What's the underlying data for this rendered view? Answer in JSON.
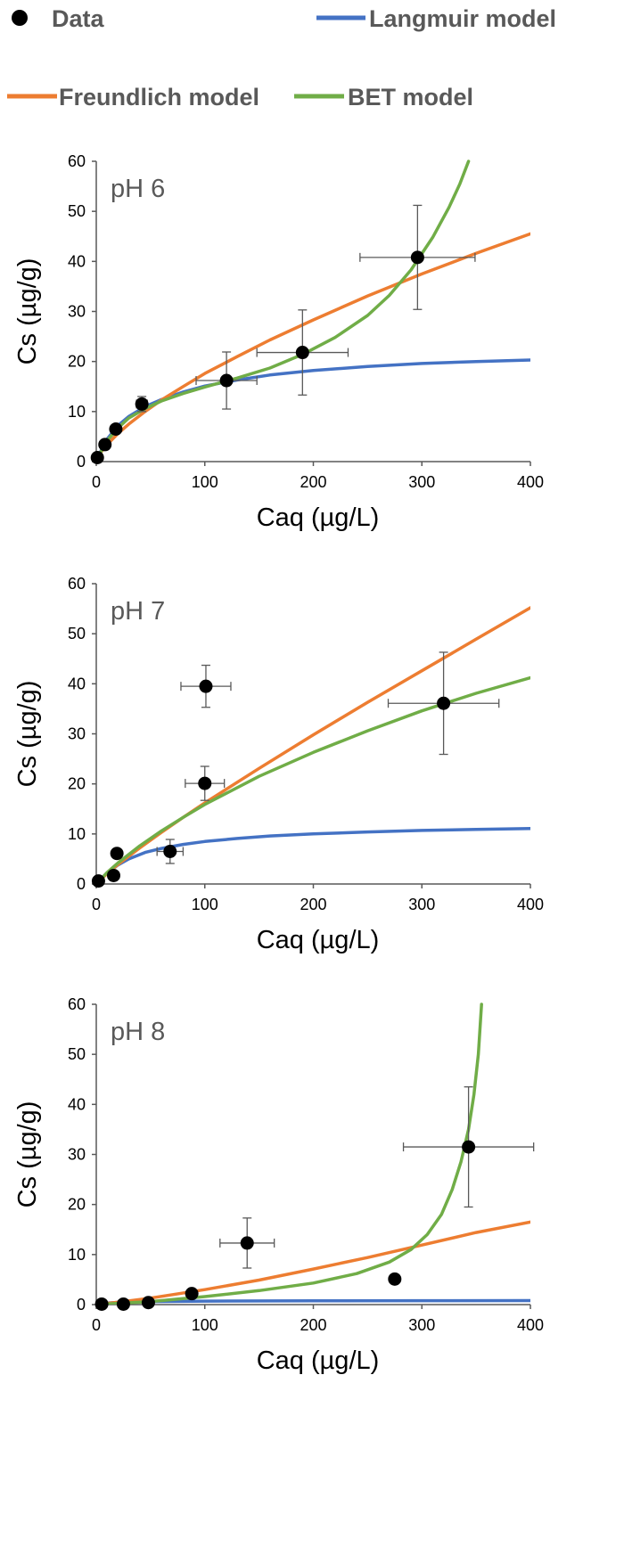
{
  "legend": [
    {
      "label": "Data",
      "kind": "marker",
      "color": "#000000"
    },
    {
      "label": "Langmuir model",
      "kind": "line",
      "color": "#4472C4"
    },
    {
      "label": "Freundlich model",
      "kind": "line",
      "color": "#ED7D31"
    },
    {
      "label": "BET model",
      "kind": "line",
      "color": "#70AD47"
    }
  ],
  "chart_data": [
    {
      "type": "scatter",
      "title": "pH 6",
      "xlabel": "Caq (µg/L)",
      "ylabel": "Cs (µg/g)",
      "xlim": [
        0,
        400
      ],
      "ylim": [
        0,
        60
      ],
      "xticks": [
        0,
        100,
        200,
        300,
        400
      ],
      "yticks": [
        0,
        10,
        20,
        30,
        40,
        50,
        60
      ],
      "data": [
        {
          "x": 1,
          "y": 0.8,
          "xerr": 0,
          "yerr": 0
        },
        {
          "x": 8,
          "y": 3.4,
          "xerr": 0,
          "yerr": 0
        },
        {
          "x": 18,
          "y": 6.5,
          "xerr": 0,
          "yerr": 0
        },
        {
          "x": 42,
          "y": 11.5,
          "xerr": 5,
          "yerr": 1.5
        },
        {
          "x": 120,
          "y": 16.2,
          "xerr": 28,
          "yerr": 5.7
        },
        {
          "x": 190,
          "y": 21.8,
          "xerr": 42,
          "yerr": 8.5
        },
        {
          "x": 296,
          "y": 40.8,
          "xerr": 53,
          "yerr": 10.4
        }
      ],
      "series": [
        {
          "name": "Langmuir model",
          "color": "#4472C4",
          "points": [
            [
              0,
              0
            ],
            [
              5,
              2.5
            ],
            [
              10,
              4.5
            ],
            [
              20,
              7.2
            ],
            [
              30,
              9
            ],
            [
              45,
              11
            ],
            [
              60,
              12.4
            ],
            [
              80,
              13.9
            ],
            [
              100,
              15.1
            ],
            [
              130,
              16.3
            ],
            [
              160,
              17.3
            ],
            [
              200,
              18.2
            ],
            [
              250,
              19
            ],
            [
              300,
              19.6
            ],
            [
              350,
              20
            ],
            [
              400,
              20.3
            ]
          ]
        },
        {
          "name": "Freundlich model",
          "color": "#ED7D31",
          "points": [
            [
              0,
              0
            ],
            [
              5,
              2.1
            ],
            [
              10,
              3.4
            ],
            [
              20,
              5.6
            ],
            [
              30,
              7.5
            ],
            [
              45,
              10
            ],
            [
              60,
              12.3
            ],
            [
              80,
              15
            ],
            [
              100,
              17.6
            ],
            [
              130,
              21
            ],
            [
              160,
              24.3
            ],
            [
              200,
              28.3
            ],
            [
              250,
              33.1
            ],
            [
              300,
              37.5
            ],
            [
              350,
              41.6
            ],
            [
              400,
              45.5
            ]
          ]
        },
        {
          "name": "BET model",
          "color": "#70AD47",
          "points": [
            [
              0,
              0
            ],
            [
              5,
              2.3
            ],
            [
              10,
              4.2
            ],
            [
              20,
              6.7
            ],
            [
              30,
              8.7
            ],
            [
              45,
              10.6
            ],
            [
              60,
              12.1
            ],
            [
              80,
              13.6
            ],
            [
              100,
              14.9
            ],
            [
              130,
              16.7
            ],
            [
              160,
              18.7
            ],
            [
              190,
              21.4
            ],
            [
              220,
              24.8
            ],
            [
              250,
              29.2
            ],
            [
              270,
              33.2
            ],
            [
              290,
              38.3
            ],
            [
              310,
              44.8
            ],
            [
              325,
              50.8
            ],
            [
              335,
              55.5
            ],
            [
              343,
              60
            ]
          ]
        }
      ]
    },
    {
      "type": "scatter",
      "title": "pH 7",
      "xlabel": "Caq (µg/L)",
      "ylabel": "Cs (µg/g)",
      "xlim": [
        0,
        400
      ],
      "ylim": [
        0,
        60
      ],
      "xticks": [
        0,
        100,
        200,
        300,
        400
      ],
      "yticks": [
        0,
        10,
        20,
        30,
        40,
        50,
        60
      ],
      "data": [
        {
          "x": 2,
          "y": 0.6,
          "xerr": 0,
          "yerr": 0
        },
        {
          "x": 16,
          "y": 1.7,
          "xerr": 0,
          "yerr": 0
        },
        {
          "x": 19,
          "y": 6.1,
          "xerr": 0,
          "yerr": 0
        },
        {
          "x": 68,
          "y": 6.5,
          "xerr": 12,
          "yerr": 2.4
        },
        {
          "x": 100,
          "y": 20.1,
          "xerr": 18,
          "yerr": 3.4
        },
        {
          "x": 101,
          "y": 39.5,
          "xerr": 23,
          "yerr": 4.2
        },
        {
          "x": 320,
          "y": 36.1,
          "xerr": 51,
          "yerr": 10.2
        }
      ],
      "series": [
        {
          "name": "Langmuir model",
          "color": "#4472C4",
          "points": [
            [
              0,
              0
            ],
            [
              5,
              1.2
            ],
            [
              10,
              2.2
            ],
            [
              20,
              3.8
            ],
            [
              30,
              5
            ],
            [
              45,
              6.3
            ],
            [
              60,
              7.1
            ],
            [
              80,
              7.9
            ],
            [
              100,
              8.5
            ],
            [
              130,
              9.1
            ],
            [
              160,
              9.6
            ],
            [
              200,
              10
            ],
            [
              250,
              10.4
            ],
            [
              300,
              10.7
            ],
            [
              350,
              10.9
            ],
            [
              400,
              11.1
            ]
          ]
        },
        {
          "name": "Freundlich model",
          "color": "#ED7D31",
          "points": [
            [
              0,
              0
            ],
            [
              10,
              2.1
            ],
            [
              20,
              3.9
            ],
            [
              40,
              7.2
            ],
            [
              60,
              10.3
            ],
            [
              80,
              13.3
            ],
            [
              100,
              16.2
            ],
            [
              150,
              23.1
            ],
            [
              200,
              29.8
            ],
            [
              250,
              36.3
            ],
            [
              300,
              42.6
            ],
            [
              350,
              48.9
            ],
            [
              400,
              55.2
            ]
          ]
        },
        {
          "name": "BET model",
          "color": "#70AD47",
          "points": [
            [
              0,
              0
            ],
            [
              10,
              2.3
            ],
            [
              20,
              4.2
            ],
            [
              40,
              7.6
            ],
            [
              60,
              10.6
            ],
            [
              80,
              13.3
            ],
            [
              100,
              15.9
            ],
            [
              150,
              21.5
            ],
            [
              200,
              26.3
            ],
            [
              250,
              30.6
            ],
            [
              300,
              34.6
            ],
            [
              350,
              38.1
            ],
            [
              400,
              41.2
            ]
          ]
        }
      ]
    },
    {
      "type": "scatter",
      "title": "pH 8",
      "xlabel": "Caq (µg/L)",
      "ylabel": "Cs (µg/g)",
      "xlim": [
        0,
        400
      ],
      "ylim": [
        0,
        60
      ],
      "xticks": [
        0,
        100,
        200,
        300,
        400
      ],
      "yticks": [
        0,
        10,
        20,
        30,
        40,
        50,
        60
      ],
      "data": [
        {
          "x": 5,
          "y": 0.1,
          "xerr": 0,
          "yerr": 0
        },
        {
          "x": 25,
          "y": 0.1,
          "xerr": 0,
          "yerr": 0
        },
        {
          "x": 48,
          "y": 0.4,
          "xerr": 0,
          "yerr": 0
        },
        {
          "x": 88,
          "y": 2.2,
          "xerr": 0,
          "yerr": 0
        },
        {
          "x": 139,
          "y": 12.3,
          "xerr": 25,
          "yerr": 5
        },
        {
          "x": 275,
          "y": 5.1,
          "xerr": 0,
          "yerr": 0
        },
        {
          "x": 343,
          "y": 31.5,
          "xerr": 60,
          "yerr": 12
        }
      ],
      "series": [
        {
          "name": "Langmuir model",
          "color": "#4472C4",
          "points": [
            [
              0,
              0
            ],
            [
              10,
              0.3
            ],
            [
              20,
              0.45
            ],
            [
              50,
              0.6
            ],
            [
              100,
              0.7
            ],
            [
              200,
              0.75
            ],
            [
              300,
              0.78
            ],
            [
              400,
              0.8
            ]
          ]
        },
        {
          "name": "Freundlich model",
          "color": "#ED7D31",
          "points": [
            [
              0,
              0
            ],
            [
              25,
              0.6
            ],
            [
              50,
              1.3
            ],
            [
              100,
              3
            ],
            [
              150,
              4.9
            ],
            [
              200,
              7.1
            ],
            [
              250,
              9.4
            ],
            [
              300,
              11.9
            ],
            [
              350,
              14.4
            ],
            [
              400,
              16.5
            ]
          ]
        },
        {
          "name": "BET model",
          "color": "#70AD47",
          "points": [
            [
              0,
              0
            ],
            [
              50,
              0.6
            ],
            [
              100,
              1.6
            ],
            [
              150,
              2.8
            ],
            [
              200,
              4.3
            ],
            [
              240,
              6.2
            ],
            [
              270,
              8.5
            ],
            [
              290,
              11
            ],
            [
              305,
              14
            ],
            [
              318,
              18
            ],
            [
              328,
              23
            ],
            [
              336,
              28.5
            ],
            [
              343,
              35
            ],
            [
              348,
              42
            ],
            [
              352,
              50
            ],
            [
              355,
              60
            ]
          ]
        }
      ]
    }
  ]
}
